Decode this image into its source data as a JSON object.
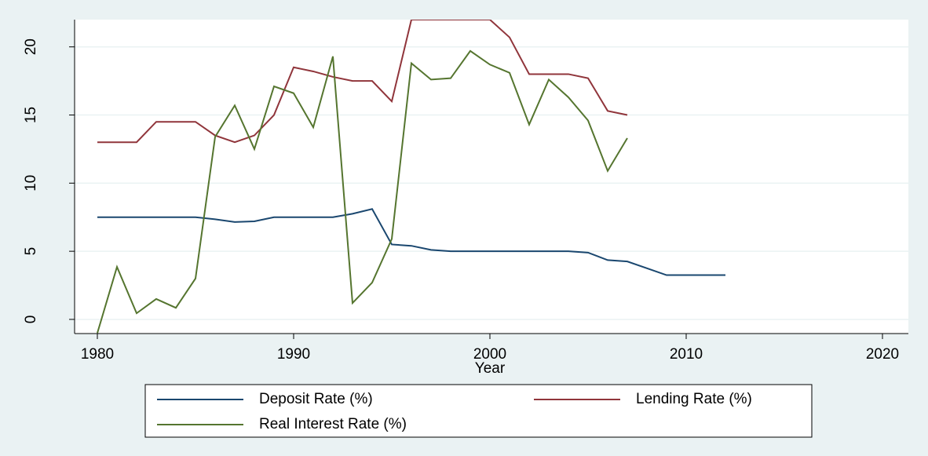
{
  "chart_data": {
    "type": "line",
    "x_label": "Year",
    "x": [
      1980,
      1981,
      1982,
      1983,
      1984,
      1985,
      1986,
      1987,
      1988,
      1989,
      1990,
      1991,
      1992,
      1993,
      1994,
      1995,
      1996,
      1997,
      1998,
      1999,
      2000,
      2001,
      2002,
      2003,
      2004,
      2005,
      2006,
      2007,
      2008,
      2009,
      2010,
      2011,
      2012
    ],
    "series": [
      {
        "name": "Deposit Rate (%)",
        "color": "#1a476f",
        "values": [
          7.5,
          7.5,
          7.5,
          7.5,
          7.5,
          7.5,
          7.35,
          7.15,
          7.2,
          7.5,
          7.5,
          7.5,
          7.5,
          7.75,
          8.1,
          5.5,
          5.4,
          5.1,
          5.0,
          5.0,
          5.0,
          5.0,
          5.0,
          5.0,
          5.0,
          4.9,
          4.35,
          4.25,
          3.75,
          3.25,
          3.25,
          3.25,
          3.25
        ]
      },
      {
        "name": "Lending Rate (%)",
        "color": "#90353b",
        "values": [
          13,
          13,
          13,
          14.5,
          14.5,
          14.5,
          13.5,
          13,
          13.5,
          15,
          18.5,
          18.2,
          17.8,
          17.5,
          17.5,
          16,
          22,
          22,
          22,
          22,
          22,
          20.7,
          18,
          18,
          18,
          17.7,
          15.3,
          15,
          null,
          null,
          null,
          null,
          null
        ]
      },
      {
        "name": "Real Interest Rate (%)",
        "color": "#55752f",
        "values": [
          -1.0,
          3.85,
          0.45,
          1.5,
          0.85,
          3.0,
          13.4,
          15.7,
          12.5,
          17.1,
          16.6,
          14.1,
          19.3,
          1.2,
          2.7,
          5.9,
          18.8,
          17.6,
          17.7,
          19.7,
          18.7,
          18.1,
          14.3,
          17.6,
          16.3,
          14.6,
          10.9,
          13.3,
          null,
          null,
          null,
          null,
          null
        ]
      }
    ],
    "xlim": [
      1978.84,
      2021.32
    ],
    "xticks": [
      1980,
      1990,
      2000,
      2010,
      2020
    ],
    "ylim": [
      -1.04,
      22.0
    ],
    "yticks": [
      0,
      5,
      10,
      15,
      20
    ],
    "grid": true
  }
}
